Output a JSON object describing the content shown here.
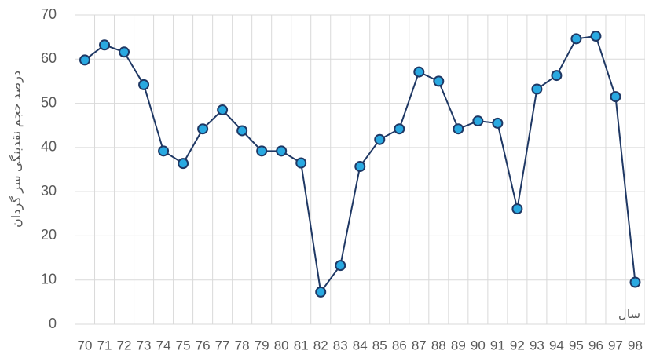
{
  "chart_data": {
    "type": "line",
    "y_label": "درصد حجم نقدینگی سر گردان",
    "x_label": "سال",
    "categories": [
      "70",
      "71",
      "72",
      "73",
      "74",
      "75",
      "76",
      "77",
      "78",
      "79",
      "80",
      "81",
      "82",
      "83",
      "84",
      "85",
      "86",
      "87",
      "88",
      "89",
      "90",
      "91",
      "92",
      "93",
      "94",
      "95",
      "96",
      "97",
      "98"
    ],
    "series": [
      {
        "name": "درصد حجم نقدینگی سر گردان",
        "color": "#1f3864",
        "marker_color": "#29a9e1",
        "values": [
          59.8,
          63.2,
          61.6,
          54.2,
          39.2,
          36.4,
          44.2,
          48.5,
          43.8,
          39.2,
          39.2,
          36.5,
          7.3,
          13.3,
          35.7,
          41.8,
          44.2,
          57.1,
          55.0,
          44.2,
          46.0,
          45.5,
          26.1,
          53.2,
          56.3,
          64.6,
          65.2,
          51.5,
          9.5
        ]
      }
    ],
    "ylim": [
      0,
      70
    ],
    "yticks": [
      0,
      10,
      20,
      30,
      40,
      50,
      60,
      70
    ],
    "grid": true
  }
}
